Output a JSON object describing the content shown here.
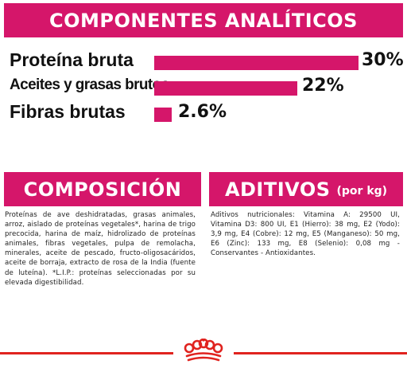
{
  "analytic": {
    "title": "COMPONENTES ANALÍTICOS",
    "accent_color": "#d5166a",
    "rows": [
      {
        "label": "Proteína bruta",
        "value": "30%",
        "percent": 30
      },
      {
        "label": "Aceites y grasas brutos",
        "value": "22%",
        "percent": 22
      },
      {
        "label": "Fibras brutas",
        "value": "2.6%",
        "percent": 2.6
      }
    ]
  },
  "composition": {
    "title": "COMPOSICIÓN",
    "text": "Proteínas de ave deshidratadas, grasas animales, arroz, aislado de proteínas vegetales*, harina de trigo precocida, harina de maíz, hidrolizado de proteínas animales, fibras vegetales, pulpa de remolacha, minerales, aceite de pescado, fructo-oligosacáridos, aceite de borraja, extracto de rosa de la India (fuente de luteína). *L.I.P.: proteínas seleccionadas por su elevada digestibilidad."
  },
  "additives": {
    "title": "ADITIVOS",
    "subtitle": "(por kg)",
    "text": "Aditivos nutricionales: Vitamina A: 29500 UI, Vitamina D3: 800 UI, E1 (Hierro): 38 mg, E2 (Yodo): 3,9 mg, E4 (Cobre): 12 mg, E5 (Manganeso): 50 mg, E6 (Zinc): 133 mg, E8 (Selenio): 0,08 mg - Conservantes - Antioxidantes."
  },
  "footer": {
    "line_color": "#e0231f",
    "logo_icon": "crown-icon"
  }
}
